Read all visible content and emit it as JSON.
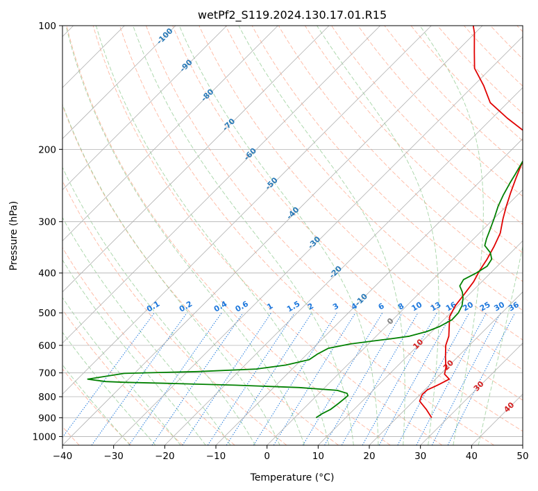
{
  "chart_data": {
    "type": "line",
    "diagram": "skew-T log-P",
    "title": "wetPf2_S119.2024.130.17.01.R15",
    "xlabel": "Temperature (°C)",
    "ylabel": "Pressure (hPa)",
    "xlim": [
      -40,
      50
    ],
    "ylim": [
      1050,
      100
    ],
    "yscale": "log",
    "grid": true,
    "x_ticks": [
      "−40",
      "−30",
      "−20",
      "−10",
      "0",
      "10",
      "20",
      "30",
      "40",
      "50"
    ],
    "y_ticks": [
      "100",
      "200",
      "300",
      "400",
      "500",
      "600",
      "700",
      "800",
      "900",
      "1000"
    ],
    "series": [
      {
        "key": "temperature",
        "color": "#e00000",
        "points": [
          [
            26.8,
            900
          ],
          [
            24.2,
            860
          ],
          [
            21.2,
            820
          ],
          [
            20.4,
            790
          ],
          [
            20.5,
            770
          ],
          [
            21.5,
            752
          ],
          [
            22.7,
            725
          ],
          [
            20.8,
            705
          ],
          [
            19.8,
            680
          ],
          [
            17.6,
            640
          ],
          [
            15.4,
            600
          ],
          [
            14.2,
            570
          ],
          [
            12.4,
            540
          ],
          [
            10.5,
            510
          ],
          [
            9.5,
            480
          ],
          [
            9.0,
            450
          ],
          [
            8.4,
            420
          ],
          [
            7.4,
            395
          ],
          [
            6.6,
            370
          ],
          [
            5.5,
            345
          ],
          [
            4.1,
            320
          ],
          [
            1.8,
            295
          ],
          [
            0.0,
            275
          ],
          [
            -1.8,
            255
          ],
          [
            -3.6,
            235
          ],
          [
            -4.8,
            222
          ],
          [
            -6.5,
            204
          ],
          [
            -8.2,
            192
          ],
          [
            -11.5,
            180
          ],
          [
            -17.0,
            168
          ],
          [
            -23.4,
            154
          ],
          [
            -28.0,
            140
          ],
          [
            -33.2,
            127
          ],
          [
            -36.4,
            116
          ],
          [
            -40.2,
            104
          ],
          [
            -41.8,
            100
          ]
        ]
      },
      {
        "key": "dewpoint",
        "color": "#008000",
        "points": [
          [
            4.2,
            900
          ],
          [
            4.6,
            880
          ],
          [
            5.4,
            860
          ],
          [
            5.6,
            845
          ],
          [
            5.8,
            830
          ],
          [
            6.0,
            810
          ],
          [
            6.1,
            795
          ],
          [
            5.5,
            785
          ],
          [
            3.0,
            772
          ],
          [
            -5.0,
            760
          ],
          [
            -18.0,
            750
          ],
          [
            -32.0,
            742
          ],
          [
            -40.0,
            738
          ],
          [
            -44.0,
            735
          ],
          [
            -48.0,
            725
          ],
          [
            -42.0,
            702
          ],
          [
            -28.0,
            695
          ],
          [
            -17.0,
            685
          ],
          [
            -12.0,
            670
          ],
          [
            -8.5,
            650
          ],
          [
            -8.0,
            630
          ],
          [
            -7.0,
            610
          ],
          [
            -3.5,
            595
          ],
          [
            0.5,
            585
          ],
          [
            3.5,
            578
          ],
          [
            6.5,
            570
          ],
          [
            9.0,
            555
          ],
          [
            10.5,
            540
          ],
          [
            11.6,
            520
          ],
          [
            11.5,
            500
          ],
          [
            10.8,
            480
          ],
          [
            9.5,
            460
          ],
          [
            8.2,
            445
          ],
          [
            6.5,
            430
          ],
          [
            6.0,
            415
          ],
          [
            7.2,
            400
          ],
          [
            8.0,
            385
          ],
          [
            7.5,
            370
          ],
          [
            6.0,
            357
          ],
          [
            3.5,
            343
          ],
          [
            2.5,
            330
          ],
          [
            1.5,
            315
          ],
          [
            0.2,
            297
          ],
          [
            -1.6,
            275
          ],
          [
            -2.8,
            258
          ],
          [
            -3.8,
            242
          ],
          [
            -4.5,
            230
          ],
          [
            -5.5,
            215
          ],
          [
            -6.5,
            200
          ],
          [
            -6.5,
            192
          ],
          [
            -5.5,
            182
          ],
          [
            -5.8,
            170
          ],
          [
            -6.2,
            160
          ],
          [
            -8.0,
            150
          ],
          [
            -11.0,
            143
          ],
          [
            -12.0,
            138
          ],
          [
            -10.2,
            133
          ],
          [
            -10.4,
            125
          ],
          [
            -12.2,
            117
          ],
          [
            -14.5,
            109
          ],
          [
            -16.2,
            100
          ]
        ]
      }
    ],
    "mixing_ratio_labels": [
      "0.1",
      "0.2",
      "0.4",
      "0.6",
      "1",
      "1.5",
      "2",
      "3",
      "4",
      "6",
      "8",
      "10",
      "13",
      "16",
      "20",
      "25",
      "30",
      "36"
    ],
    "moist_adiabat_labels": [
      "-100",
      "-90",
      "-80",
      "-70",
      "-60",
      "-50",
      "-40",
      "-30",
      "-20",
      "-10",
      "0",
      "10",
      "20",
      "30",
      "40"
    ],
    "colors": {
      "grid": "#b0b0b0",
      "dry_adiabat": "#ff9f80",
      "moist_adiabat": "#8fc98f",
      "mixing_ratio": "#1e78dc",
      "label_cold": "#2a7ab8",
      "label_warm": "#d42020",
      "label_zero": "#808080"
    }
  }
}
